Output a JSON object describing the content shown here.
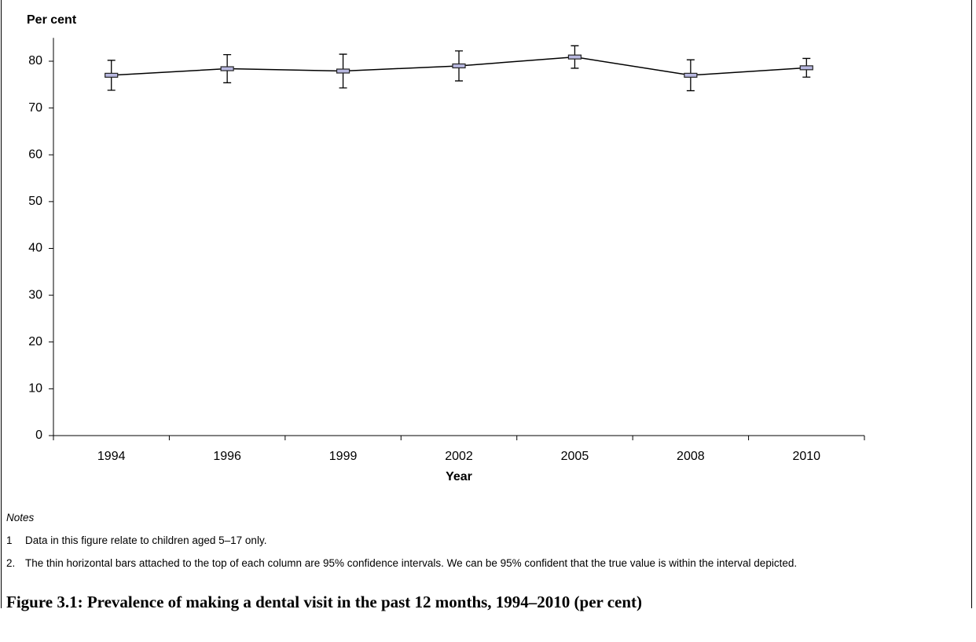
{
  "chart_data": {
    "type": "line",
    "title": "Figure 3.1: Prevalence of making a dental visit in the past 12 months, 1994–2010 (per cent)",
    "y_label": "Per cent",
    "x_label": "Year",
    "categories": [
      "1994",
      "1996",
      "1999",
      "2002",
      "2005",
      "2008",
      "2010"
    ],
    "values": [
      77.0,
      78.4,
      77.9,
      79.0,
      80.9,
      77.0,
      78.6
    ],
    "errors": [
      3.2,
      3.0,
      3.6,
      3.2,
      2.4,
      3.3,
      2.0
    ],
    "color": "#000000",
    "marker_color": "#b8b8e0",
    "ylim": [
      0,
      85
    ],
    "yticks": [
      0,
      10,
      20,
      30,
      40,
      50,
      60,
      70,
      80
    ],
    "grid": false
  },
  "notes": {
    "title": "Notes",
    "items": [
      {
        "number": "1",
        "text": "Data in this figure relate to children aged 5–17 only."
      },
      {
        "number": "2.",
        "text": "The thin horizontal bars attached to the top of each column are 95% confidence intervals. We can be 95% confident that the true value is within the interval depicted."
      }
    ]
  }
}
